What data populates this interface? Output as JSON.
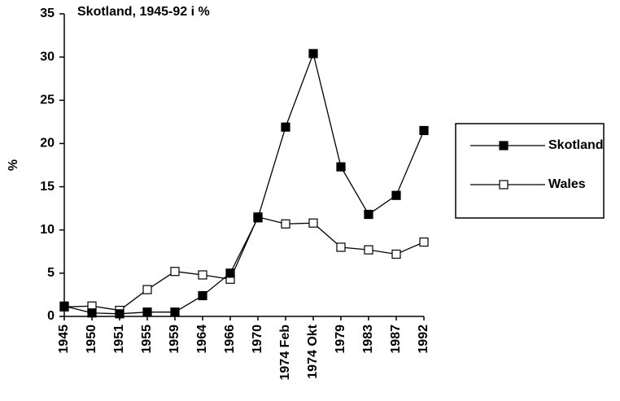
{
  "chart_data": {
    "type": "line",
    "title": "Skotland, 1945-92 i %",
    "y_label": "%",
    "categories": [
      "1945",
      "1950",
      "1951",
      "1955",
      "1959",
      "1964",
      "1966",
      "1970",
      "1974 Feb",
      "1974 Okt",
      "1979",
      "1983",
      "1987",
      "1992"
    ],
    "series": [
      {
        "name": "Skotland",
        "color": "#000000",
        "marker": "filled-square",
        "values": [
          1.2,
          0.4,
          0.3,
          0.5,
          0.5,
          2.4,
          5.0,
          11.4,
          21.9,
          30.4,
          17.3,
          11.8,
          14.0,
          21.5
        ]
      },
      {
        "name": "Wales",
        "color": "#000000",
        "marker": "open-square",
        "values": [
          1.1,
          1.2,
          0.7,
          3.1,
          5.2,
          4.8,
          4.3,
          11.5,
          10.7,
          10.8,
          8.0,
          7.7,
          7.2,
          8.6
        ]
      }
    ],
    "ylim": [
      0,
      35
    ],
    "yticks": [
      0,
      5,
      10,
      15,
      20,
      25,
      30,
      35
    ],
    "legend": "right"
  }
}
